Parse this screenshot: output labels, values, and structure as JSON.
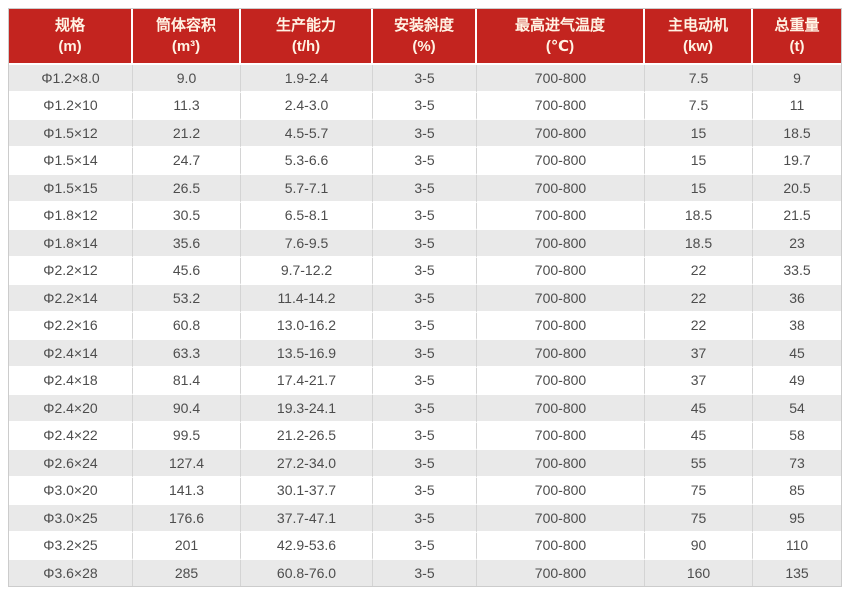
{
  "chart_data": {
    "type": "table",
    "title": "",
    "columns": [
      {
        "title": "规格",
        "unit": "(m)"
      },
      {
        "title": "筒体容积",
        "unit": "(m³)"
      },
      {
        "title": "生产能力",
        "unit": "(t/h)"
      },
      {
        "title": "安装斜度",
        "unit": "(%)"
      },
      {
        "title": "最高进气温度",
        "unit": "(℃)"
      },
      {
        "title": "主电动机",
        "unit": "(kw)"
      },
      {
        "title": "总重量",
        "unit": "(t)"
      }
    ],
    "rows": [
      [
        "Φ1.2×8.0",
        "9.0",
        "1.9-2.4",
        "3-5",
        "700-800",
        "7.5",
        "9"
      ],
      [
        "Φ1.2×10",
        "11.3",
        "2.4-3.0",
        "3-5",
        "700-800",
        "7.5",
        "11"
      ],
      [
        "Φ1.5×12",
        "21.2",
        "4.5-5.7",
        "3-5",
        "700-800",
        "15",
        "18.5"
      ],
      [
        "Φ1.5×14",
        "24.7",
        "5.3-6.6",
        "3-5",
        "700-800",
        "15",
        "19.7"
      ],
      [
        "Φ1.5×15",
        "26.5",
        "5.7-7.1",
        "3-5",
        "700-800",
        "15",
        "20.5"
      ],
      [
        "Φ1.8×12",
        "30.5",
        "6.5-8.1",
        "3-5",
        "700-800",
        "18.5",
        "21.5"
      ],
      [
        "Φ1.8×14",
        "35.6",
        "7.6-9.5",
        "3-5",
        "700-800",
        "18.5",
        "23"
      ],
      [
        "Φ2.2×12",
        "45.6",
        "9.7-12.2",
        "3-5",
        "700-800",
        "22",
        "33.5"
      ],
      [
        "Φ2.2×14",
        "53.2",
        "11.4-14.2",
        "3-5",
        "700-800",
        "22",
        "36"
      ],
      [
        "Φ2.2×16",
        "60.8",
        "13.0-16.2",
        "3-5",
        "700-800",
        "22",
        "38"
      ],
      [
        "Φ2.4×14",
        "63.3",
        "13.5-16.9",
        "3-5",
        "700-800",
        "37",
        "45"
      ],
      [
        "Φ2.4×18",
        "81.4",
        "17.4-21.7",
        "3-5",
        "700-800",
        "37",
        "49"
      ],
      [
        "Φ2.4×20",
        "90.4",
        "19.3-24.1",
        "3-5",
        "700-800",
        "45",
        "54"
      ],
      [
        "Φ2.4×22",
        "99.5",
        "21.2-26.5",
        "3-5",
        "700-800",
        "45",
        "58"
      ],
      [
        "Φ2.6×24",
        "127.4",
        "27.2-34.0",
        "3-5",
        "700-800",
        "55",
        "73"
      ],
      [
        "Φ3.0×20",
        "141.3",
        "30.1-37.7",
        "3-5",
        "700-800",
        "75",
        "85"
      ],
      [
        "Φ3.0×25",
        "176.6",
        "37.7-47.1",
        "3-5",
        "700-800",
        "75",
        "95"
      ],
      [
        "Φ3.2×25",
        "201",
        "42.9-53.6",
        "3-5",
        "700-800",
        "90",
        "110"
      ],
      [
        "Φ3.6×28",
        "285",
        "60.8-76.0",
        "3-5",
        "700-800",
        "160",
        "135"
      ]
    ],
    "colors": {
      "header_bg": "#c3241f",
      "header_text": "#fff3e4",
      "row_alt_bg": "#e9e9e9",
      "row_bg": "#ffffff",
      "cell_text": "#4d4d4d",
      "cell_border": "#d4d4d4",
      "outer_border": "#cccccc"
    },
    "layout_hints": {
      "stripes": "odd rows shaded",
      "alignment": "center"
    }
  }
}
